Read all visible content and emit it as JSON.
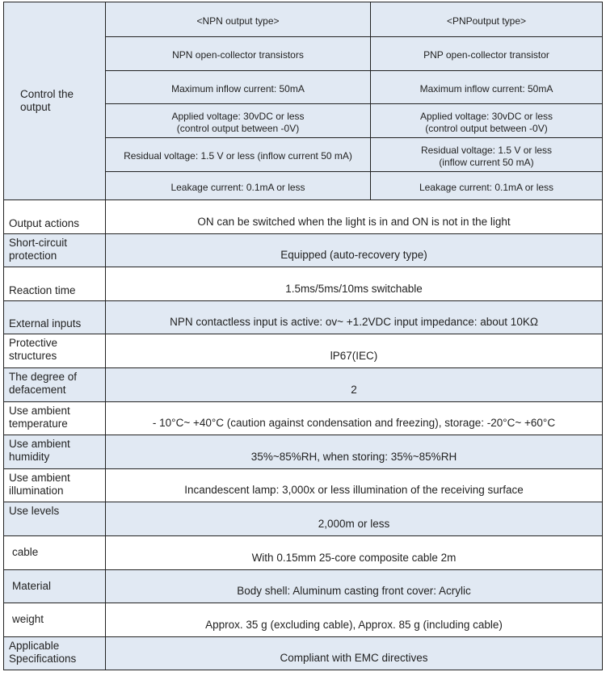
{
  "control": {
    "label": "Control the output",
    "npn": [
      "<NPN output type>",
      "NPN open-collector transistors",
      "Maximum inflow current: 50mA",
      "Applied voltage: 30vDC or less\n(control output between -0V)",
      "Residual voltage: 1.5 V or less (inflow current 50 mA)",
      "Leakage current: 0.1mA or less"
    ],
    "pnp": [
      "<PNPoutput type>",
      "PNP open-collector transistor",
      "Maximum inflow current: 50mA",
      "Applied voltage: 30vDC or less\n(control output between -0V)",
      "Residual voltage: 1.5 V or less\n(inflow current 50 mA)",
      "Leakage current: 0.1mA or less"
    ]
  },
  "rows": [
    {
      "label": "Output actions",
      "value": "ON can be switched when the light is in and ON is not in the light"
    },
    {
      "label": "Short-circuit protection",
      "value": "Equipped (auto-recovery type)"
    },
    {
      "label": "Reaction time",
      "value": "1.5ms/5ms/10ms switchable"
    },
    {
      "label": "External inputs",
      "value": "NPN contactless input is active: ov~ +1.2VDC input impedance: about 10KΩ"
    },
    {
      "label": "Protective structures",
      "value": "lP67(IEC)"
    },
    {
      "label": "The degree of defacement",
      "value": "2"
    },
    {
      "label": "Use ambient temperature",
      "value": "- 10°C~ +40°C (caution against condensation and freezing), storage: -20°C~ +60°C"
    },
    {
      "label": "Use ambient humidity",
      "value": "35%~85%RH, when storing: 35%~85%RH"
    },
    {
      "label": "Use ambient illumination",
      "value": "Incandescent lamp: 3,000x or less illumination of the receiving surface"
    },
    {
      "label": "Use levels",
      "value": "2,000m or less"
    },
    {
      "label": "cable",
      "value": "With 0.15mm 25-core composite cable 2m"
    },
    {
      "label": "Material",
      "value": "Body shell: Aluminum casting front cover: Acrylic"
    },
    {
      "label": "weight",
      "value": "Approx. 35 g (excluding cable), Approx. 85 g (including cable)"
    },
    {
      "label": "Applicable Specifications",
      "value": "Compliant with EMC directives"
    }
  ],
  "colors": {
    "row_tint": "#e1e9f3",
    "border": "#222222"
  }
}
